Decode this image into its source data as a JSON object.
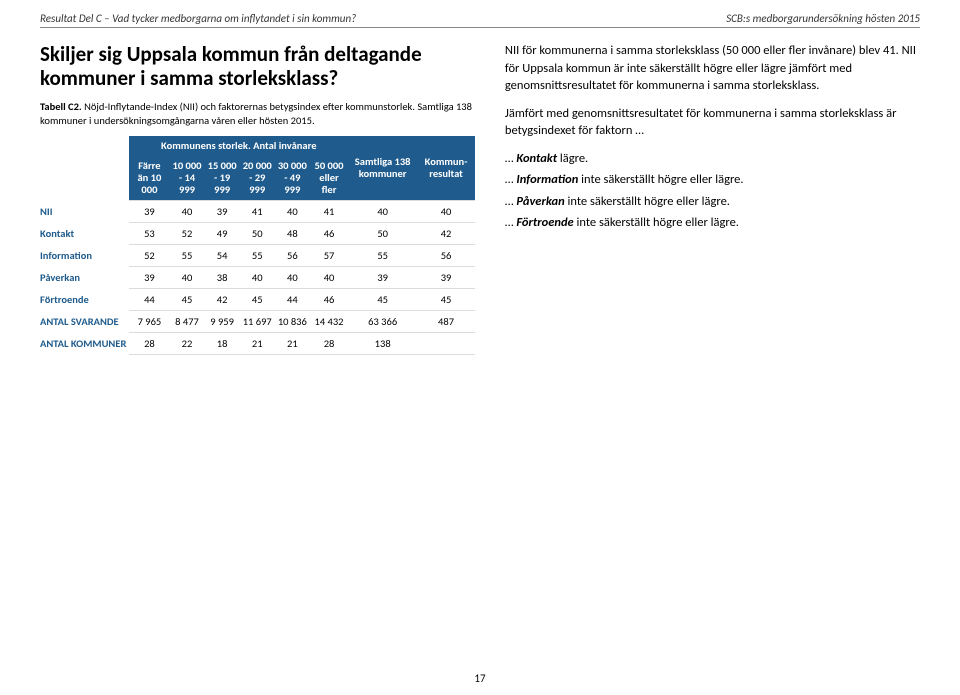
{
  "header": {
    "left": "Resultat Del C – Vad tycker medborgarna om inflytandet i sin kommun?",
    "right": "SCB:s medborgarundersökning hösten 2015"
  },
  "heading": "Skiljer sig Uppsala kommun från deltagande kommuner i samma storleksklass?",
  "caption": {
    "label": "Tabell C2.",
    "text": "Nöjd-Inflytande-Index (NII) och faktorernas betygsindex efter kommunstorlek. Samtliga 138 kommuner i undersökningsomgångarna våren eller hösten 2015."
  },
  "table": {
    "group_header": "Kommunens storlek. Antal invånare",
    "size_headers": [
      "Färre än 10 000",
      "10 000 - 14 999",
      "15 000 - 19 999",
      "20 000 - 29 999",
      "30 000 - 49 999",
      "50 000 eller fler"
    ],
    "col_all": "Samtliga 138 kommuner",
    "col_result": "Kommun-resultat",
    "rows": [
      {
        "label": "NII",
        "v": [
          "39",
          "40",
          "39",
          "41",
          "40",
          "41",
          "40",
          "40"
        ]
      },
      {
        "label": "Kontakt",
        "v": [
          "53",
          "52",
          "49",
          "50",
          "48",
          "46",
          "50",
          "42"
        ]
      },
      {
        "label": "Information",
        "v": [
          "52",
          "55",
          "54",
          "55",
          "56",
          "57",
          "55",
          "56"
        ]
      },
      {
        "label": "Påverkan",
        "v": [
          "39",
          "40",
          "38",
          "40",
          "40",
          "40",
          "39",
          "39"
        ]
      },
      {
        "label": "Förtroende",
        "v": [
          "44",
          "45",
          "42",
          "45",
          "44",
          "46",
          "45",
          "45"
        ]
      },
      {
        "label": "ANTAL SVARANDE",
        "v": [
          "7 965",
          "8 477",
          "9 959",
          "11 697",
          "10 836",
          "14 432",
          "63 366",
          "487"
        ]
      },
      {
        "label": "ANTAL KOMMUNER",
        "v": [
          "28",
          "22",
          "18",
          "21",
          "21",
          "28",
          "138",
          ""
        ]
      }
    ]
  },
  "right": {
    "p1": "NII för kommunerna i samma storleksklass (50 000 eller fler invånare) blev 41. NII för Uppsala kommun är inte säkerställt högre eller lägre jämfört med genomsnittsresultatet för kommunerna i samma storleksklass.",
    "p2": "Jämfört med genomsnittsresultatet för kommunerna i samma storleksklass är betygsindexet för faktorn …",
    "factors": [
      {
        "name": "Kontakt",
        "rest": " lägre."
      },
      {
        "name": "Information",
        "rest": " inte säkerställt högre eller lägre."
      },
      {
        "name": "Påverkan",
        "rest": " inte säkerställt högre eller lägre."
      },
      {
        "name": "Förtroende",
        "rest": " inte säkerställt högre eller lägre."
      }
    ]
  },
  "pagenum": "17"
}
